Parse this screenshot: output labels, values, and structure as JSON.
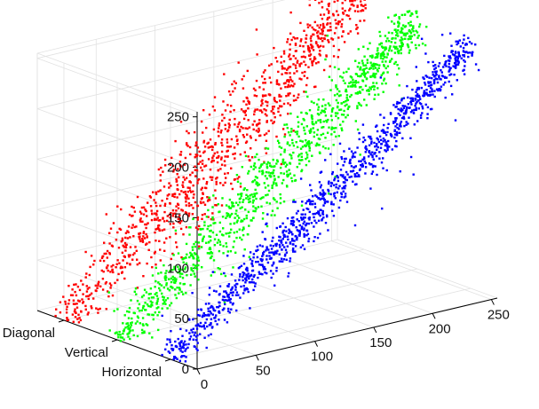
{
  "chart_data": {
    "type": "scatter",
    "projection": "3d",
    "title": "",
    "xlabel": "",
    "ylabel": "",
    "zlabel": "",
    "z_ticks": [
      "0",
      "50",
      "100",
      "150",
      "200",
      "250"
    ],
    "x_ticks": [
      "0",
      "50",
      "100",
      "150",
      "200",
      "250"
    ],
    "categories": [
      "Horizontal",
      "Vertical",
      "Diagonal"
    ],
    "zlim": [
      0,
      255
    ],
    "xlim": [
      0,
      255
    ],
    "grid": true,
    "series": [
      {
        "category": "Diagonal",
        "color": "#ff0000",
        "trend": "z ≈ x",
        "x_range": [
          0,
          255
        ],
        "z_range": [
          0,
          255
        ],
        "spread": "wide"
      },
      {
        "category": "Vertical",
        "color": "#00ff00",
        "trend": "z ≈ x",
        "x_range": [
          0,
          255
        ],
        "z_range": [
          0,
          245
        ],
        "spread": "medium"
      },
      {
        "category": "Horizontal",
        "color": "#0000ff",
        "trend": "z ≈ x",
        "x_range": [
          0,
          255
        ],
        "z_range": [
          0,
          240
        ],
        "spread": "narrow"
      }
    ]
  }
}
